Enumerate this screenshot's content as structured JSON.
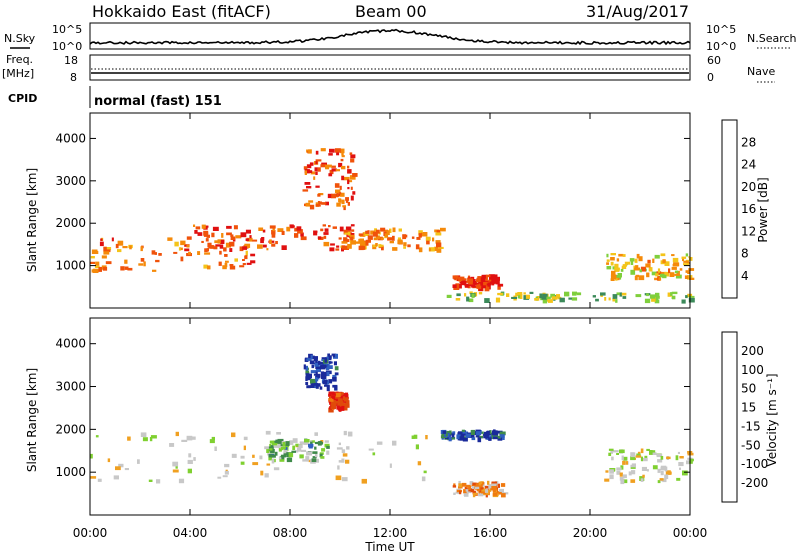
{
  "header": {
    "station": "Hokkaido East (fitACF)",
    "beam": "Beam 00",
    "date": "31/Aug/2017"
  },
  "strips": {
    "nsky_label": "N.Sky",
    "nsearch_label": "N.Search",
    "noise_ticks": [
      "10^5",
      "10^0"
    ],
    "freq_label_1": "Freq.",
    "freq_label_2": "[MHz]",
    "freq_ticks": [
      "18",
      "8"
    ],
    "nave_label": "Nave",
    "nave_ticks": [
      "60",
      "0"
    ],
    "cpid_label": "CPID",
    "cpid_value": "normal (fast) 151"
  },
  "colors": {
    "power_scale": [
      "#0000ff",
      "#234aa8",
      "#3c8a5a",
      "#7fcf3c",
      "#f4c41a",
      "#f58a0a",
      "#f0520a",
      "#e01010"
    ],
    "velocity_scale": [
      "#1a2a9a",
      "#2f5fc0",
      "#3f8a4a",
      "#7fd030",
      "#c8c8c8",
      "#c8c8c8",
      "#f0a020",
      "#f07a10",
      "#e04a0a",
      "#e01010"
    ]
  },
  "chart_data": [
    {
      "type": "heatmap",
      "name": "power",
      "ylabel": "Slant Range [km]",
      "yticks": [
        "4000",
        "3000",
        "2000",
        "1000"
      ],
      "colorbar_label": "Power [dB]",
      "colorbar_ticks": [
        "28",
        "24",
        "20",
        "16",
        "12",
        "8",
        "4"
      ],
      "patches": [
        {
          "t0": 0.0,
          "t1": 6.5,
          "r0": 900,
          "r1": 1700,
          "level": 0.75
        },
        {
          "t0": 4.0,
          "t1": 10.5,
          "r0": 1400,
          "r1": 2000,
          "level": 0.85
        },
        {
          "t0": 10.0,
          "t1": 14.0,
          "r0": 1400,
          "r1": 1900,
          "level": 0.7
        },
        {
          "t0": 14.5,
          "t1": 16.3,
          "r0": 500,
          "r1": 800,
          "level": 0.9
        },
        {
          "t0": 8.5,
          "t1": 10.5,
          "r0": 2400,
          "r1": 3800,
          "level": 0.8
        },
        {
          "t0": 20.5,
          "t1": 24.0,
          "r0": 700,
          "r1": 1300,
          "level": 0.6
        },
        {
          "t0": 14.0,
          "t1": 24.0,
          "r0": 200,
          "r1": 400,
          "level": 0.45
        }
      ]
    },
    {
      "type": "heatmap",
      "name": "velocity",
      "ylabel": "Slant Range [km]",
      "yticks": [
        "4000",
        "3000",
        "2000",
        "1000"
      ],
      "colorbar_label": "Velocity [m s⁻¹]",
      "colorbar_ticks": [
        "200",
        "100",
        "50",
        "15",
        "-15",
        "-50",
        "-100",
        "-200"
      ],
      "patches": [
        {
          "t0": 0.0,
          "t1": 13.5,
          "r0": 800,
          "r1": 2000,
          "level": 0.5
        },
        {
          "t0": 8.5,
          "t1": 9.8,
          "r0": 3000,
          "r1": 3800,
          "level": 0.05
        },
        {
          "t0": 9.5,
          "t1": 10.2,
          "r0": 2500,
          "r1": 2900,
          "level": 0.95
        },
        {
          "t0": 14.5,
          "t1": 16.5,
          "r0": 500,
          "r1": 800,
          "level": 0.7
        },
        {
          "t0": 14.0,
          "t1": 16.5,
          "r0": 1800,
          "r1": 2000,
          "level": 0.1
        },
        {
          "t0": 7.0,
          "t1": 9.5,
          "r0": 1300,
          "r1": 1800,
          "level": 0.35
        },
        {
          "t0": 20.5,
          "t1": 24.0,
          "r0": 800,
          "r1": 1600,
          "level": 0.5
        }
      ]
    }
  ],
  "time_axis": {
    "xlabel": "Time UT",
    "ticks": [
      "00:00",
      "04:00",
      "08:00",
      "12:00",
      "16:00",
      "20:00",
      "00:00"
    ],
    "range_hours": [
      0,
      24
    ]
  }
}
